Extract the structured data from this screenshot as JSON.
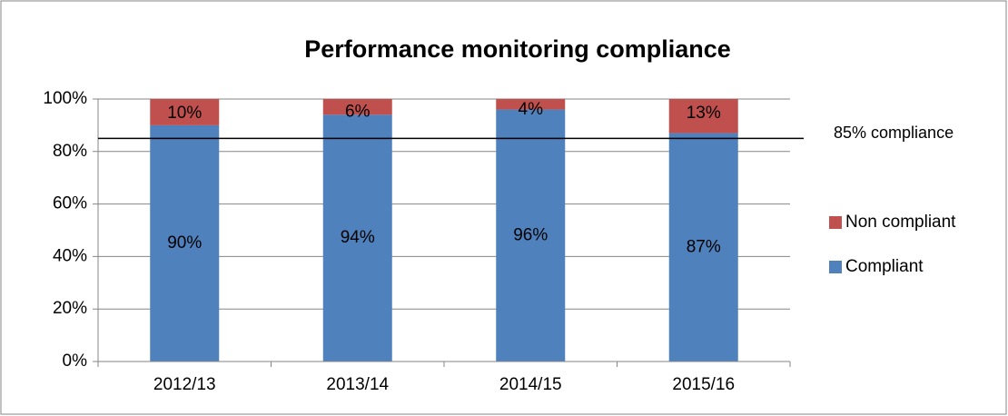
{
  "chart_data": {
    "type": "stacked_bar",
    "title": "Performance monitoring compliance",
    "categories": [
      "2012/13",
      "2013/14",
      "2014/15",
      "2015/16"
    ],
    "series": [
      {
        "name": "Compliant",
        "color": "#4f81bd",
        "values": [
          90,
          94,
          96,
          87
        ],
        "value_labels": [
          "90%",
          "94%",
          "96%",
          "87%"
        ]
      },
      {
        "name": "Non compliant",
        "color": "#c0504d",
        "values": [
          10,
          6,
          4,
          13
        ],
        "value_labels": [
          "10%",
          "6%",
          "4%",
          "13%"
        ]
      }
    ],
    "ylim": [
      0,
      100
    ],
    "yticks": [
      {
        "value": 0,
        "label": "0%"
      },
      {
        "value": 20,
        "label": "20%"
      },
      {
        "value": 40,
        "label": "40%"
      },
      {
        "value": 60,
        "label": "60%"
      },
      {
        "value": 80,
        "label": "80%"
      },
      {
        "value": 100,
        "label": "100%"
      }
    ],
    "grid": true,
    "legend": "right",
    "reference_line": {
      "value": 85,
      "label": "85% compliance"
    }
  }
}
